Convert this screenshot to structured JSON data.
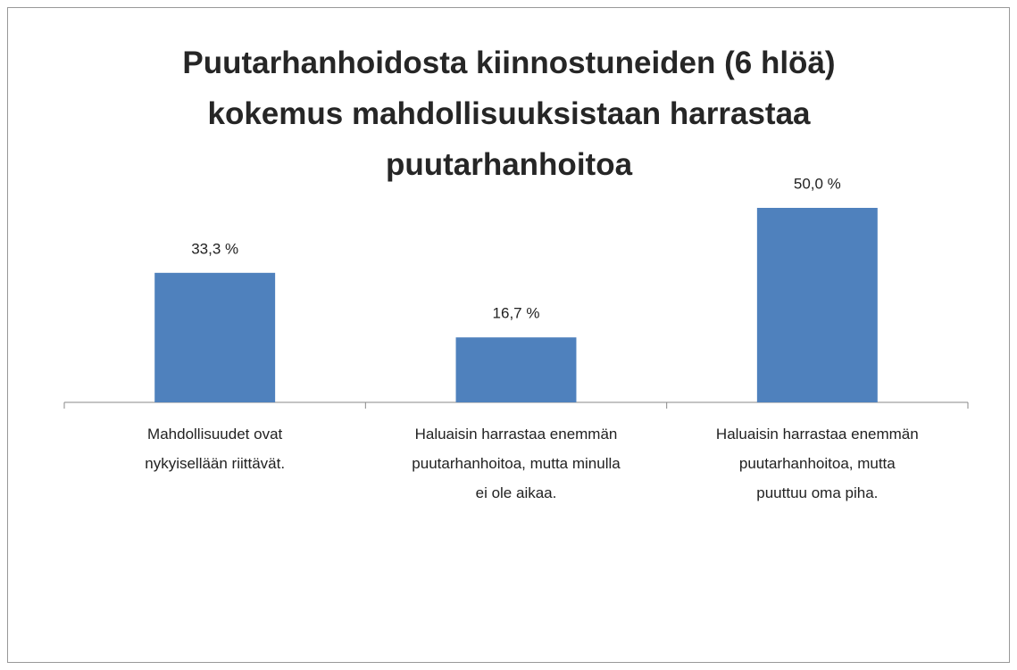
{
  "chart_data": {
    "type": "bar",
    "title": "Puutarhanhoidosta kiinnostuneiden (6 hlöä) kokemus mahdollisuuksistaan harrastaa puutarhanhoitoa",
    "categories": [
      "Mahdollisuudet ovat nykyisellään riittävät.",
      "Haluaisin harrastaa enemmän puutarhanhoitoa, mutta minulla ei ole aikaa.",
      "Haluaisin harrastaa enemmän puutarhanhoitoa, mutta puuttuu oma piha."
    ],
    "values": [
      33.3,
      16.7,
      50.0
    ],
    "value_labels": [
      "33,3 %",
      "16,7 %",
      "50,0 %"
    ],
    "color": "#4f81bd"
  }
}
